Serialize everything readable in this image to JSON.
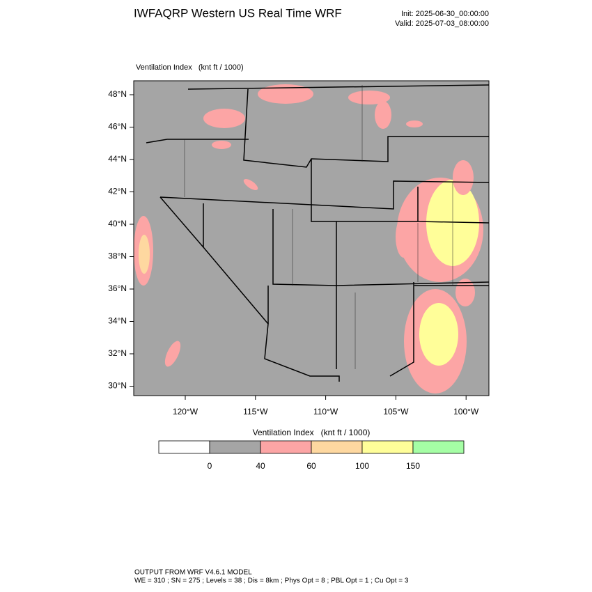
{
  "header": {
    "title": "IWFAQRP Western US Real Time WRF",
    "init": "Init: 2025-06-30_00:00:00",
    "valid": "Valid: 2025-07-03_08:00:00"
  },
  "map": {
    "field_label": "Ventilation Index   (knt ft / 1000)",
    "lat_labels": [
      "48°N",
      "46°N",
      "44°N",
      "42°N",
      "40°N",
      "38°N",
      "36°N",
      "34°N",
      "32°N",
      "30°N"
    ],
    "lon_labels": [
      "120°W",
      "115°W",
      "110°W",
      "105°W",
      "100°W"
    ]
  },
  "colorbar": {
    "title": "Ventilation Index   (knt ft / 1000)",
    "levels": [
      0,
      40,
      60,
      100,
      150
    ],
    "colors": [
      "#ffffff",
      "#a5a5a5",
      "#fca5a5",
      "#fed8a0",
      "#fffe99",
      "#a5fea5"
    ]
  },
  "footer": {
    "line1": "OUTPUT FROM WRF V4.6.1 MODEL",
    "line2": "WE = 310 ; SN = 275 ; Levels = 38 ; Dis = 8km ; Phys Opt = 8 ; PBL Opt = 1 ; Cu Opt = 3"
  }
}
